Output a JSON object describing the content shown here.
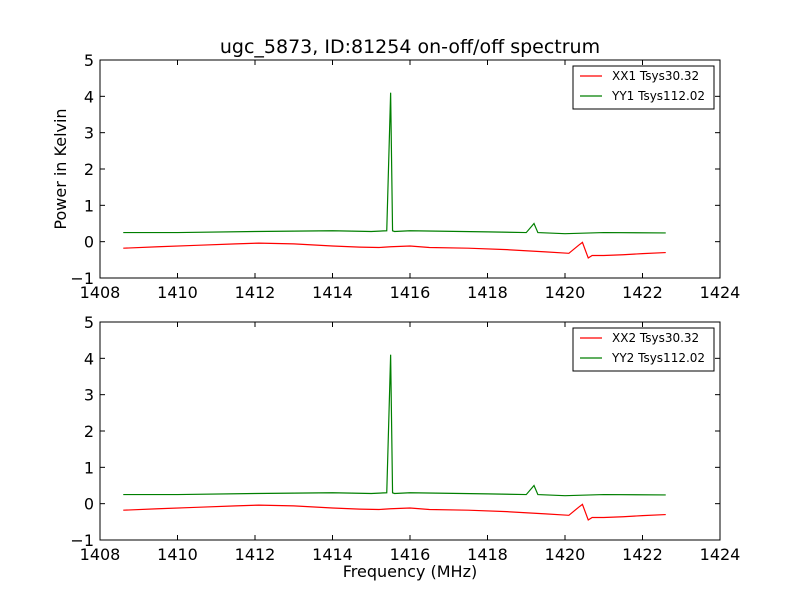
{
  "chart_data": [
    {
      "type": "line",
      "title": "ugc_5873, ID:81254 on-off/off spectrum",
      "xlabel": "",
      "ylabel": "Power in Kelvin",
      "xlim": [
        1408,
        1424
      ],
      "ylim": [
        -1,
        5
      ],
      "x_ticks": [
        1408,
        1410,
        1412,
        1414,
        1416,
        1418,
        1420,
        1422,
        1424
      ],
      "y_ticks": [
        -1,
        0,
        1,
        2,
        3,
        4,
        5
      ],
      "grid": false,
      "legend_position": "top-right",
      "series": [
        {
          "name": "XX1 Tsys30.32",
          "color": "#ff0000",
          "x": [
            1408.6,
            1409.5,
            1410.5,
            1411.5,
            1412.1,
            1413.0,
            1414.0,
            1414.7,
            1415.2,
            1415.5,
            1416.0,
            1416.5,
            1417.5,
            1418.5,
            1419.5,
            1420.1,
            1420.35,
            1420.45,
            1420.6,
            1420.7,
            1421.0,
            1421.5,
            1422.0,
            1422.6
          ],
          "values": [
            -0.18,
            -0.14,
            -0.1,
            -0.06,
            -0.04,
            -0.06,
            -0.12,
            -0.15,
            -0.16,
            -0.14,
            -0.12,
            -0.16,
            -0.18,
            -0.22,
            -0.28,
            -0.32,
            -0.1,
            -0.02,
            -0.45,
            -0.38,
            -0.38,
            -0.36,
            -0.33,
            -0.3
          ]
        },
        {
          "name": "YY1 Tsys112.02",
          "color": "#007f00",
          "x": [
            1408.6,
            1410.0,
            1412.0,
            1414.0,
            1415.0,
            1415.4,
            1415.5,
            1415.55,
            1415.6,
            1416.0,
            1418.0,
            1419.0,
            1419.2,
            1419.3,
            1420.0,
            1421.0,
            1422.6
          ],
          "values": [
            0.25,
            0.25,
            0.28,
            0.3,
            0.28,
            0.3,
            4.1,
            0.3,
            0.28,
            0.3,
            0.27,
            0.25,
            0.5,
            0.25,
            0.22,
            0.25,
            0.24
          ]
        }
      ]
    },
    {
      "type": "line",
      "title": "",
      "xlabel": "Frequency (MHz)",
      "ylabel": "",
      "xlim": [
        1408,
        1424
      ],
      "ylim": [
        -1,
        5
      ],
      "x_ticks": [
        1408,
        1410,
        1412,
        1414,
        1416,
        1418,
        1420,
        1422,
        1424
      ],
      "y_ticks": [
        -1,
        0,
        1,
        2,
        3,
        4,
        5
      ],
      "grid": false,
      "legend_position": "top-right",
      "series": [
        {
          "name": "XX2 Tsys30.32",
          "color": "#ff0000",
          "x": [
            1408.6,
            1409.5,
            1410.5,
            1411.5,
            1412.1,
            1413.0,
            1414.0,
            1414.7,
            1415.2,
            1415.5,
            1416.0,
            1416.5,
            1417.5,
            1418.5,
            1419.5,
            1420.1,
            1420.35,
            1420.45,
            1420.6,
            1420.7,
            1421.0,
            1421.5,
            1422.0,
            1422.6
          ],
          "values": [
            -0.18,
            -0.14,
            -0.1,
            -0.06,
            -0.04,
            -0.06,
            -0.12,
            -0.15,
            -0.16,
            -0.14,
            -0.12,
            -0.16,
            -0.18,
            -0.22,
            -0.28,
            -0.32,
            -0.1,
            -0.02,
            -0.45,
            -0.38,
            -0.38,
            -0.36,
            -0.33,
            -0.3
          ]
        },
        {
          "name": "YY2 Tsys112.02",
          "color": "#007f00",
          "x": [
            1408.6,
            1410.0,
            1412.0,
            1414.0,
            1415.0,
            1415.4,
            1415.5,
            1415.55,
            1415.6,
            1416.0,
            1418.0,
            1419.0,
            1419.2,
            1419.3,
            1420.0,
            1421.0,
            1422.6
          ],
          "values": [
            0.25,
            0.25,
            0.28,
            0.3,
            0.28,
            0.3,
            4.1,
            0.3,
            0.28,
            0.3,
            0.27,
            0.25,
            0.5,
            0.25,
            0.22,
            0.25,
            0.24
          ]
        }
      ]
    }
  ]
}
